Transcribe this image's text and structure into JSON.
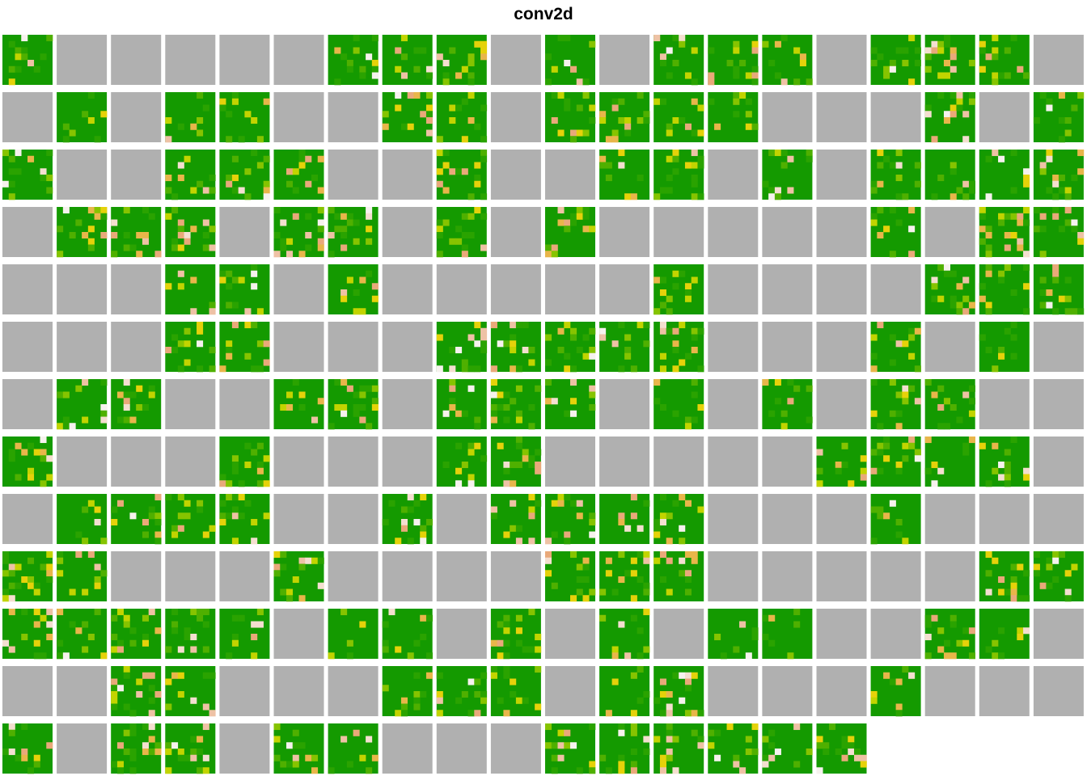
{
  "title": "conv2d",
  "chart_data": {
    "type": "heatmap",
    "title": "conv2d",
    "panel_grid": {
      "rows": 13,
      "cols": 20
    },
    "panel_count": 256,
    "kernel_cells": 8,
    "colors": {
      "dominant": "#149a00",
      "inactive_panel": "#b0b0b0",
      "palette": [
        "#149a00",
        "#2aa300",
        "#4fb000",
        "#86c400",
        "#c2d400",
        "#e5d20a",
        "#e8b64a",
        "#e9a97a",
        "#eec2a5",
        "#f4dfd0",
        "#f6f2ee"
      ],
      "background": "#ffffff"
    },
    "legend": "none",
    "active": [
      "10000011101011101110",
      "01011001101111000101",
      "10011100100110101111",
      "01110110101000001011",
      "00011010000010000111",
      "00011000111110001010",
      "01100110111010101100",
      "10001000110000011110",
      "01111001011110001000",
      "11000100001110000011",
      "11111011010101100110",
      "00110001110110001000",
      "10110110001111110000"
    ]
  }
}
